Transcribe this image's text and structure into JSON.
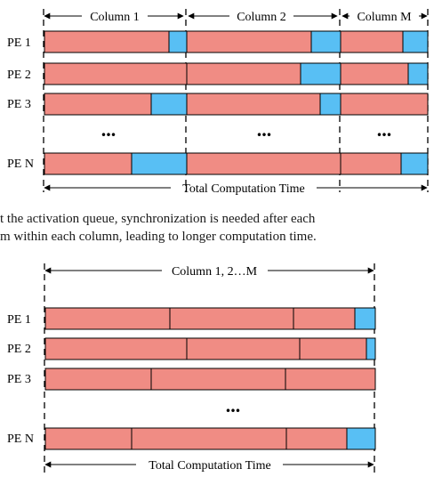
{
  "colors": {
    "compute": "#f08c84",
    "idle": "#58bff4",
    "stroke": "#000000"
  },
  "diagram_top": {
    "column_labels": [
      "Column 1",
      "Column 2",
      "Column M"
    ],
    "pe_labels": [
      "PE 1",
      "PE 2",
      "PE 3",
      "PE N"
    ],
    "ellipsis": "...",
    "total_label": "Total Computation Time",
    "rows": [
      [
        [
          {
            "k": "compute",
            "w": 140
          },
          {
            "k": "idle",
            "w": 20
          }
        ],
        [
          {
            "k": "compute",
            "w": 140
          },
          {
            "k": "idle",
            "w": 33
          }
        ],
        [
          {
            "k": "compute",
            "w": 70
          },
          {
            "k": "idle",
            "w": 28
          }
        ]
      ],
      [
        [
          {
            "k": "compute",
            "w": 160
          }
        ],
        [
          {
            "k": "compute",
            "w": 128
          },
          {
            "k": "idle",
            "w": 45
          }
        ],
        [
          {
            "k": "compute",
            "w": 76
          },
          {
            "k": "idle",
            "w": 22
          }
        ]
      ],
      [
        [
          {
            "k": "compute",
            "w": 120
          },
          {
            "k": "idle",
            "w": 40
          }
        ],
        [
          {
            "k": "compute",
            "w": 150
          },
          {
            "k": "idle",
            "w": 23
          }
        ],
        [
          {
            "k": "compute",
            "w": 98
          }
        ]
      ],
      [
        [
          {
            "k": "compute",
            "w": 98
          },
          {
            "k": "idle",
            "w": 62
          }
        ],
        [
          {
            "k": "compute",
            "w": 173
          }
        ],
        [
          {
            "k": "compute",
            "w": 68
          },
          {
            "k": "idle",
            "w": 30
          }
        ]
      ]
    ]
  },
  "caption": {
    "line1": "t the activation queue, synchronization is needed after each",
    "line2": "m within each column, leading to longer computation time."
  },
  "diagram_bottom": {
    "column_label": "Column 1, 2…M",
    "pe_labels": [
      "PE 1",
      "PE 2",
      "PE 3",
      "PE N"
    ],
    "ellipsis": "...",
    "total_label": "Total Computation Time",
    "rows": [
      [
        {
          "k": "compute",
          "w": 140
        },
        {
          "k": "compute",
          "w": 139
        },
        {
          "k": "compute",
          "w": 69
        },
        {
          "k": "idle",
          "w": 23
        }
      ],
      [
        {
          "k": "compute",
          "w": 159
        },
        {
          "k": "compute",
          "w": 127
        },
        {
          "k": "compute",
          "w": 75
        },
        {
          "k": "idle",
          "w": 10
        }
      ],
      [
        {
          "k": "compute",
          "w": 119
        },
        {
          "k": "compute",
          "w": 151
        },
        {
          "k": "compute",
          "w": 101
        }
      ],
      [
        {
          "k": "compute",
          "w": 97
        },
        {
          "k": "compute",
          "w": 174
        },
        {
          "k": "compute",
          "w": 68
        },
        {
          "k": "idle",
          "w": 32
        }
      ]
    ]
  }
}
